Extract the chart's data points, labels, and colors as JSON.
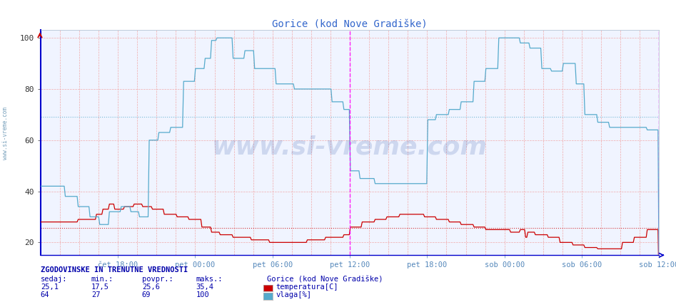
{
  "title": "Gorice (kod Nove Gradiške)",
  "bg_color": "#ffffff",
  "plot_bg_color": "#f0f4ff",
  "x_ticks_labels": [
    "čet 18:00",
    "pet 00:00",
    "pet 06:00",
    "pet 12:00",
    "pet 18:00",
    "sob 00:00",
    "sob 06:00",
    "sob 12:00"
  ],
  "x_ticks_pos": [
    0.125,
    0.25,
    0.375,
    0.5,
    0.625,
    0.75,
    0.875,
    1.0
  ],
  "ylim": [
    15,
    103
  ],
  "y_ticks": [
    20,
    40,
    60,
    80,
    100
  ],
  "temp_color": "#cc0000",
  "vlaga_color": "#55aacc",
  "temp_avg_line": 25.6,
  "vlaga_avg_line": 69,
  "watermark": "www.si-vreme.com",
  "legend_title": "Gorice (kod Nove Gradiške)",
  "legend_temp": "temperatura[C]",
  "legend_vlaga": "vlaga[%]",
  "footer_label": "ZGODOVINSKE IN TRENUTNE VREDNOSTI",
  "footer_cols": [
    "sedaj:",
    "min.:",
    "povpr.:",
    "maks.:"
  ],
  "footer_temp_vals": [
    "25,1",
    "17,5",
    "25,6",
    "35,4"
  ],
  "footer_vlaga_vals": [
    "64",
    "27",
    "69",
    "100"
  ],
  "title_color": "#3366cc",
  "axis_color": "#0000cc",
  "tick_color": "#cc0000",
  "footer_color": "#0000aa",
  "sidebar_label": "www.si-vreme.com"
}
